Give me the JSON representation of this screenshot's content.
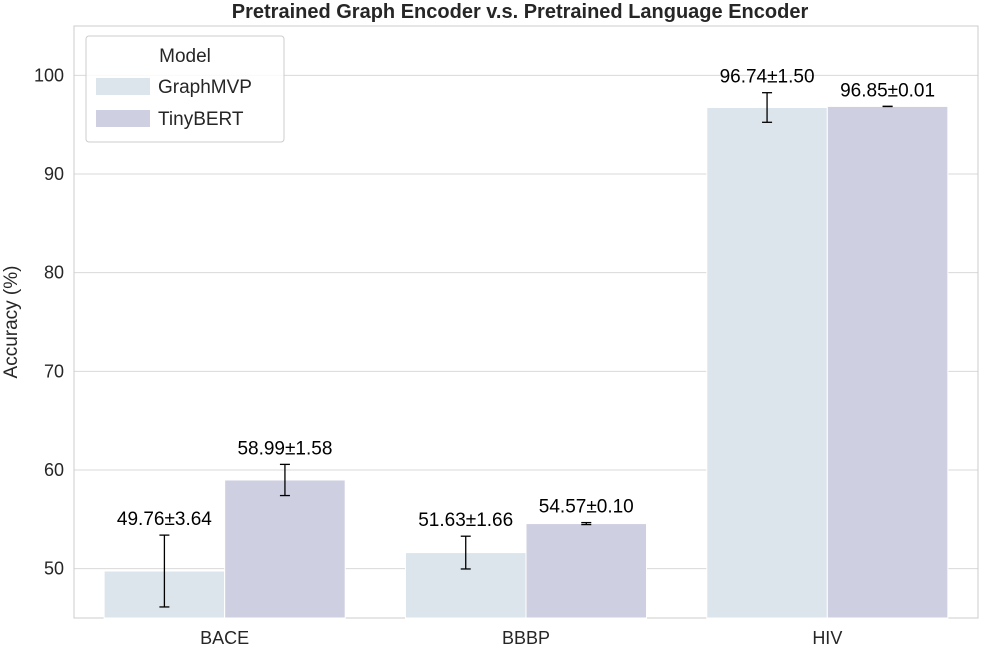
{
  "chart_data": {
    "type": "bar",
    "title": "Pretrained Graph Encoder v.s. Pretrained Language Encoder",
    "xlabel": "",
    "ylabel": "Accuracy (%)",
    "ylim": [
      45,
      105
    ],
    "yticks": [
      "50",
      "60",
      "70",
      "80",
      "90",
      "100"
    ],
    "categories": [
      "BACE",
      "BBBP",
      "HIV"
    ],
    "grid": true,
    "legend": {
      "title": "Model",
      "placement": "top-left"
    },
    "series": [
      {
        "name": "GraphMVP",
        "color": "#dce4ec",
        "values": [
          49.76,
          51.63,
          96.74
        ],
        "errors": [
          3.64,
          1.66,
          1.5
        ],
        "labels": [
          "49.76±3.64",
          "51.63±1.66",
          "96.74±1.50"
        ]
      },
      {
        "name": "TinyBERT",
        "color": "#cfcfe2",
        "values": [
          58.99,
          54.57,
          96.85
        ],
        "errors": [
          1.58,
          0.1,
          0.01
        ],
        "labels": [
          "58.99±1.58",
          "54.57±0.10",
          "96.85±0.01"
        ]
      }
    ]
  }
}
